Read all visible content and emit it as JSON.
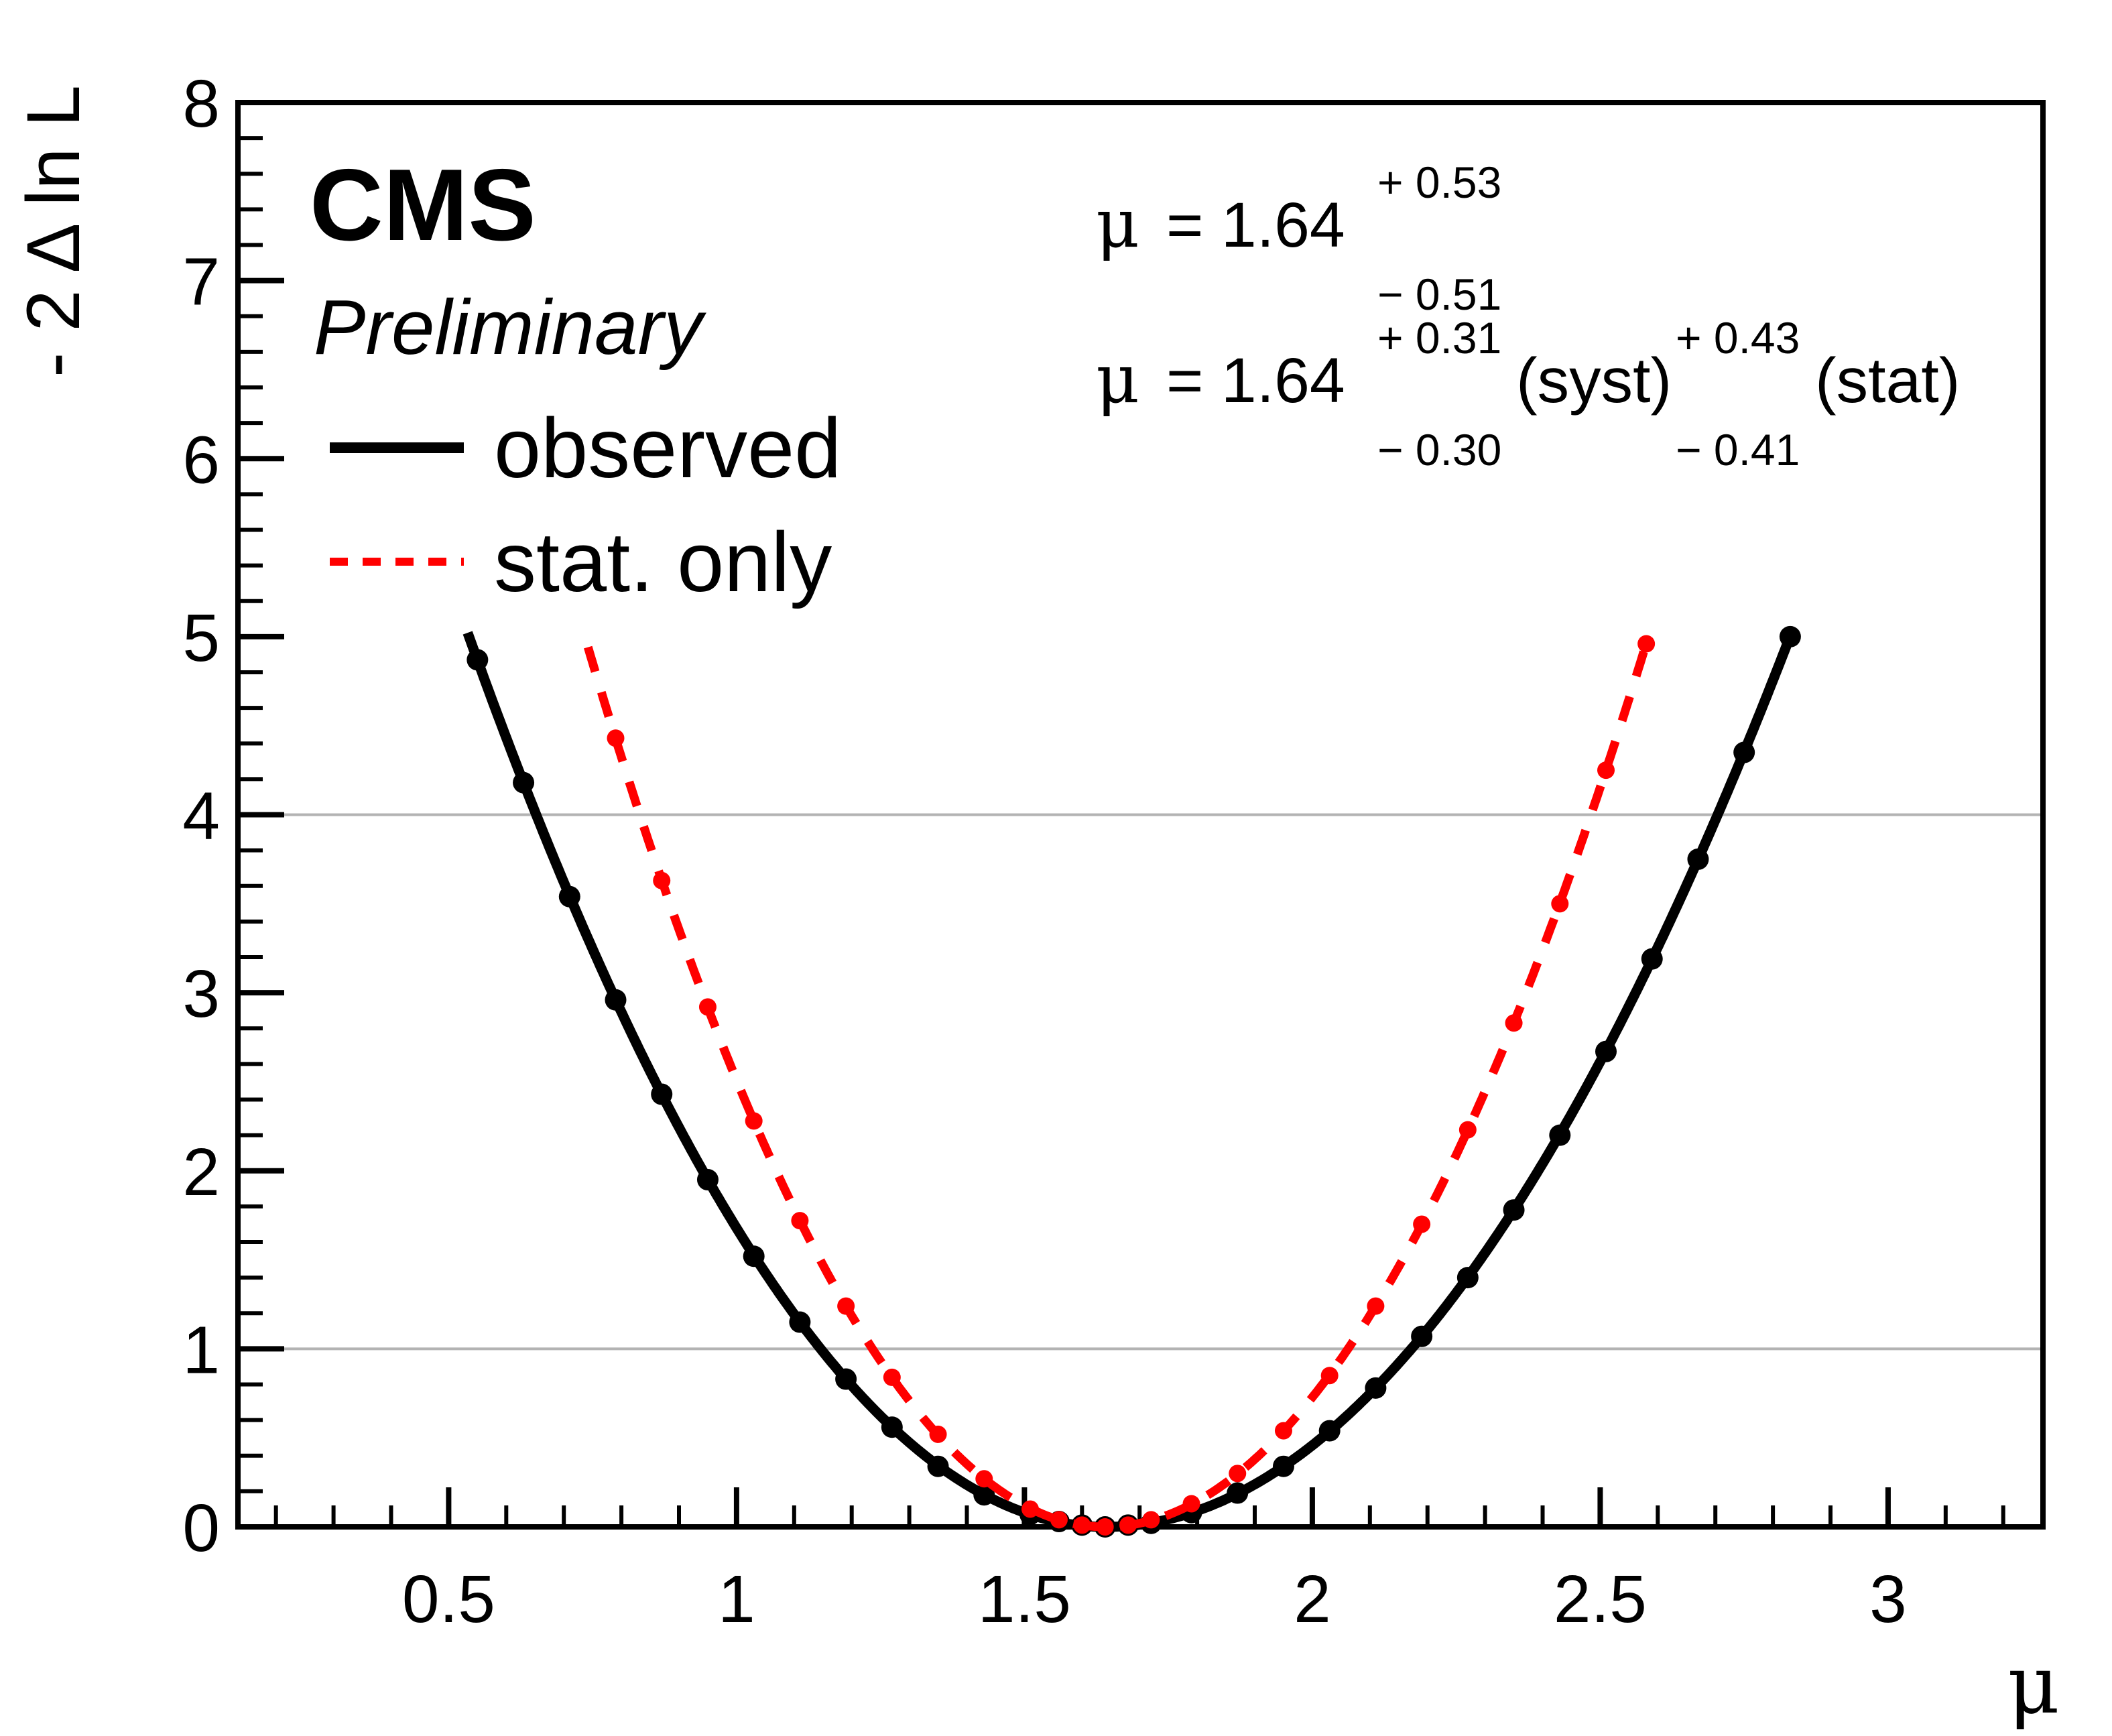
{
  "page": {
    "background": "#ffffff"
  },
  "chart_data": {
    "type": "line",
    "title": "",
    "brand": {
      "cms": "CMS",
      "preliminary": "Preliminary"
    },
    "annotations": {
      "line1": {
        "mu": "μ",
        "value": "= 1.64",
        "sup": "+ 0.53",
        "sub": "− 0.51"
      },
      "line2": {
        "mu": "μ",
        "value": "= 1.64",
        "sup1": "+ 0.31",
        "sub1": "− 0.30",
        "label1": "(syst)",
        "sup2": "+ 0.43",
        "sub2": "− 0.41",
        "label2": "(stat)"
      }
    },
    "best_fit": {
      "mu": 1.64,
      "err_up": 0.53,
      "err_down": 0.51,
      "syst_up": 0.31,
      "syst_down": 0.3,
      "stat_up": 0.43,
      "stat_down": 0.41
    },
    "legend": {
      "position": "top-left",
      "items": [
        {
          "label": "observed",
          "color": "#000000",
          "line_style": "solid"
        },
        {
          "label": "stat. only",
          "color": "#ff0000",
          "line_style": "dashed"
        }
      ]
    },
    "axes": {
      "x": {
        "title": "μ",
        "min": 0.134,
        "max": 3.269,
        "major_ticks": [
          0.5,
          1,
          1.5,
          2,
          2.5,
          3
        ],
        "major_labels": [
          "0.5",
          "1",
          "1.5",
          "2",
          "2.5",
          "3"
        ],
        "minor_step": 0.1
      },
      "y": {
        "title": "- 2 Δ ln L",
        "min": 0,
        "max": 8,
        "major_ticks": [
          0,
          1,
          2,
          3,
          4,
          5,
          6,
          7,
          8
        ],
        "major_labels": [
          "0",
          "1",
          "2",
          "3",
          "4",
          "5",
          "6",
          "7",
          "8"
        ],
        "minor_step": 0.2
      }
    },
    "grid_on": true,
    "gridlines_y": [
      1,
      4
    ],
    "grid_color": "#b3b3b3",
    "series": [
      {
        "name": "observed",
        "color": "#000000",
        "line_style": "solid",
        "marker": "circle",
        "curve": {
          "min_mu": 1.64,
          "sigma_minus": 0.494,
          "sigma_plus": 0.532,
          "mu_start": 0.533,
          "mu_end": 2.83
        },
        "points": [
          [
            0.55,
            4.87
          ],
          [
            0.63,
            4.18
          ],
          [
            0.71,
            3.54
          ],
          [
            0.79,
            2.96
          ],
          [
            0.87,
            2.43
          ],
          [
            0.95,
            1.95
          ],
          [
            1.03,
            1.52
          ],
          [
            1.11,
            1.15
          ],
          [
            1.19,
            0.83
          ],
          [
            1.27,
            0.56
          ],
          [
            1.35,
            0.34
          ],
          [
            1.43,
            0.18
          ],
          [
            1.51,
            0.07
          ],
          [
            1.56,
            0.03
          ],
          [
            1.6,
            0.01
          ],
          [
            1.64,
            0.0
          ],
          [
            1.68,
            0.01
          ],
          [
            1.72,
            0.02
          ],
          [
            1.79,
            0.08
          ],
          [
            1.87,
            0.19
          ],
          [
            1.95,
            0.34
          ],
          [
            2.03,
            0.54
          ],
          [
            2.11,
            0.78
          ],
          [
            2.19,
            1.07
          ],
          [
            2.27,
            1.4
          ],
          [
            2.35,
            1.78
          ],
          [
            2.43,
            2.2
          ],
          [
            2.51,
            2.67
          ],
          [
            2.59,
            3.19
          ],
          [
            2.67,
            3.75
          ],
          [
            2.75,
            4.35
          ],
          [
            2.83,
            5.0
          ]
        ]
      },
      {
        "name": "stat. only",
        "color": "#ff0000",
        "line_style": "dashed",
        "marker": "circle",
        "curve": {
          "min_mu": 1.64,
          "sigma_minus": 0.404,
          "sigma_plus": 0.422,
          "mu_start": 0.742,
          "mu_end": 2.585
        },
        "points": [
          [
            0.79,
            4.43
          ],
          [
            0.87,
            3.63
          ],
          [
            0.95,
            2.92
          ],
          [
            1.03,
            2.28
          ],
          [
            1.11,
            1.72
          ],
          [
            1.19,
            1.24
          ],
          [
            1.27,
            0.84
          ],
          [
            1.35,
            0.52
          ],
          [
            1.43,
            0.27
          ],
          [
            1.51,
            0.1
          ],
          [
            1.56,
            0.04
          ],
          [
            1.6,
            0.01
          ],
          [
            1.64,
            0.0
          ],
          [
            1.68,
            0.01
          ],
          [
            1.72,
            0.04
          ],
          [
            1.79,
            0.13
          ],
          [
            1.87,
            0.3
          ],
          [
            1.95,
            0.54
          ],
          [
            2.03,
            0.85
          ],
          [
            2.11,
            1.24
          ],
          [
            2.19,
            1.7
          ],
          [
            2.27,
            2.23
          ],
          [
            2.35,
            2.83
          ],
          [
            2.43,
            3.5
          ],
          [
            2.51,
            4.25
          ],
          [
            2.58,
            4.96
          ]
        ]
      }
    ]
  }
}
